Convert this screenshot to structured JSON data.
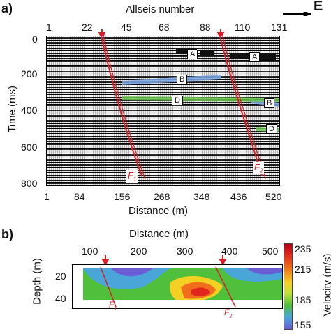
{
  "panel_a": {
    "letter": "a)",
    "top_axis_title": "Allseis number",
    "top_ticks": [
      "1",
      "22",
      "45",
      "68",
      "88",
      "110",
      "131"
    ],
    "bottom_axis_title": "Distance (m)",
    "bottom_ticks": [
      "1",
      "84",
      "156",
      "268",
      "348",
      "436",
      "520"
    ],
    "y_axis_title": "Time (ms)",
    "y_ticks": [
      "0",
      "200",
      "400",
      "600",
      "800"
    ],
    "east_label": "E",
    "markers": {
      "A": "A",
      "B": "B",
      "D": "D",
      "F1": "F",
      "F1_sub": "1",
      "F2": "F",
      "F2_sub": "2"
    }
  },
  "panel_b": {
    "letter": "b)",
    "x_axis_title": "Distance (m)",
    "x_ticks": [
      "100",
      "200",
      "300",
      "400",
      "500"
    ],
    "y_axis_title": "Depth (m)",
    "y_ticks": [
      "20",
      "40"
    ],
    "colorbar": {
      "title": "Velocity (m/s)",
      "ticks": [
        "235",
        "215",
        "185",
        "155"
      ]
    },
    "faults": {
      "F1": "F",
      "F1_sub": "1",
      "F2": "F",
      "F2_sub": "2"
    }
  },
  "colors": {
    "fault_line": "#d81f26",
    "layer_A": "#111111",
    "layer_B": "#7aa7e6",
    "layer_D": "#69c64b"
  }
}
